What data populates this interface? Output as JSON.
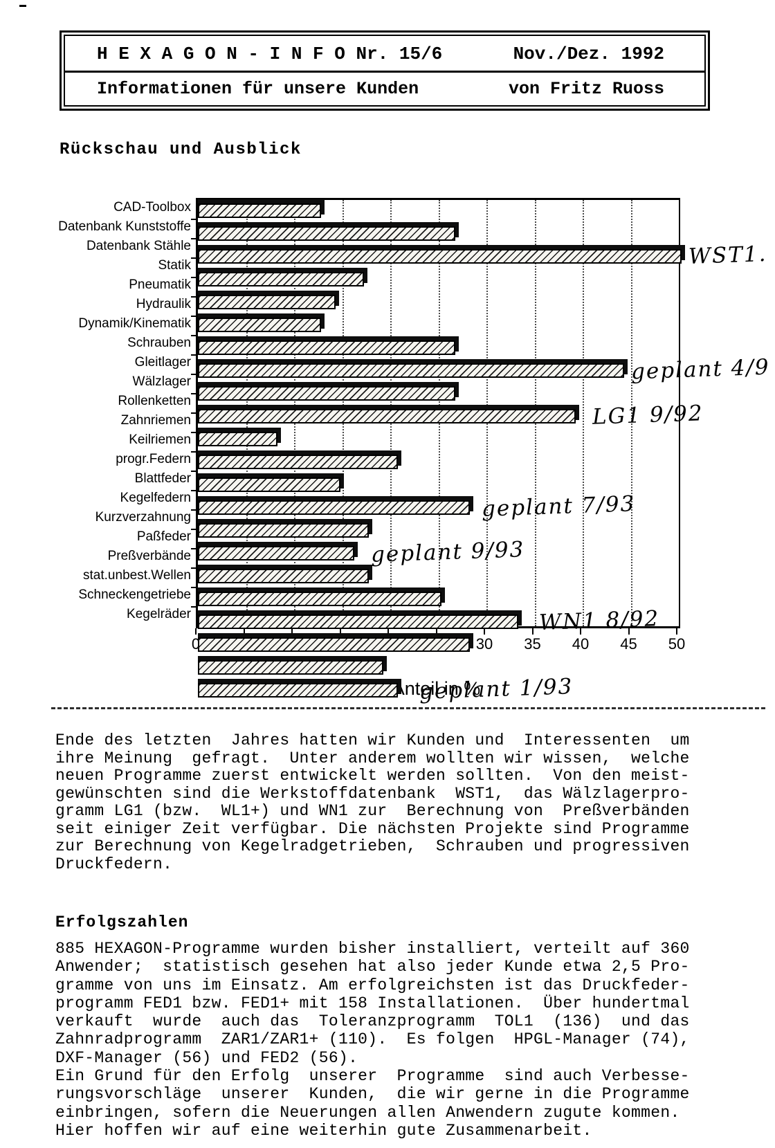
{
  "page": {
    "paper_color": "#ffffff",
    "ink_color": "#000000"
  },
  "header": {
    "title_left": "H E X A G O N  -  I N F O   Nr. 15/6",
    "title_right": "Nov./Dez.  1992",
    "subtitle_left": "Informationen für unsere Kunden",
    "subtitle_right": "von Fritz Ruoss"
  },
  "section1": {
    "heading": "Rückschau und Ausblick",
    "body_lines": [
      "Ende des letzten  Jahres hatten wir Kunden und  Interessenten  um",
      "ihre Meinung  gefragt.  Unter anderem wollten wir wissen,  welche",
      "neuen Programme zuerst entwickelt werden sollten.  Von den meist-",
      "gewünschten sind die Werkstoffdatenbank  WST1,  das Wälzlagerpro-",
      "gramm LG1 (bzw.  WL1+) und WN1 zur  Berechnung von  Preßverbänden",
      "seit einiger Zeit verfügbar. Die nächsten Projekte sind Programme",
      "zur Berechnung von Kegelradgetrieben,  Schrauben und progressiven",
      "Druckfedern."
    ]
  },
  "chart_data": {
    "type": "bar",
    "orientation": "horizontal",
    "title": "",
    "xlabel": "Anteil in %",
    "xlim": [
      0,
      50
    ],
    "xticks": [
      0,
      5,
      10,
      15,
      20,
      25,
      30,
      35,
      40,
      45,
      50
    ],
    "grid": "vertical-dotted",
    "categories": [
      "CAD-Toolbox",
      "Datenbank Kunststoffe",
      "Datenbank Stähle",
      "Statik",
      "Pneumatik",
      "Hydraulik",
      "Dynamik/Kinematik",
      "Schrauben",
      "Gleitlager",
      "Wälzlager",
      "Rollenketten",
      "Zahnriemen",
      "Keilriemen",
      "progr.Federn",
      "Blattfeder",
      "Kegelfedern",
      "Kurzverzahnung",
      "Paßfeder",
      "Preßverbände",
      "stat.unbest.Wellen",
      "Schneckengetriebe",
      "Kegelräder"
    ],
    "values": [
      12.5,
      26.5,
      50,
      17,
      14,
      12.5,
      26.5,
      44,
      26.5,
      39,
      8,
      20.5,
      14.5,
      28,
      17.5,
      16,
      17.5,
      25,
      33,
      28,
      19,
      20.5
    ],
    "annotations": [
      {
        "target": "Datenbank Stähle",
        "index": 2,
        "text": "WST1.",
        "x": 51
      },
      {
        "target": "Schrauben",
        "index": 7,
        "text": "geplant 4/9",
        "x": 45
      },
      {
        "target": "Wälzlager",
        "index": 9,
        "text": "LG1  9/92",
        "x": 41
      },
      {
        "target": "progr.Federn",
        "index": 13,
        "text": "geplant  7/93",
        "x": 29.5
      },
      {
        "target": "Kegelfedern",
        "index": 15,
        "text": "geplant  9/93",
        "x": 18
      },
      {
        "target": "Preßverbände",
        "index": 18,
        "text": "WN1  8/92",
        "x": 35.5
      },
      {
        "target": "Kegelräder",
        "index": 21,
        "text": "geplant  1/93",
        "x": 23
      }
    ]
  },
  "section2": {
    "heading": "Erfolgszahlen",
    "body_lines": [
      "885 HEXAGON-Programme wurden bisher installiert, verteilt auf 360",
      "Anwender;  statistisch gesehen hat also jeder Kunde etwa 2,5 Pro-",
      "gramme von uns im Einsatz. Am erfolgreichsten ist das Druckfeder-",
      "programm FED1 bzw. FED1+ mit 158 Installationen.  Über hundertmal",
      "verkauft  wurde  auch das  Toleranzprogramm  TOL1  (136)  und das",
      "Zahnradprogramm  ZAR1/ZAR1+ (110).  Es folgen  HPGL-Manager (74),",
      "DXF-Manager (56) und FED2 (56).",
      "Ein Grund für den Erfolg  unserer  Programme  sind auch Verbesse-",
      "rungsvorschläge  unserer  Kunden,  die wir gerne in die Programme",
      "einbringen, sofern die Neuerungen allen Anwendern zugute kommen.",
      "Hier hoffen wir auf eine weiterhin gute Zusammenarbeit."
    ]
  }
}
